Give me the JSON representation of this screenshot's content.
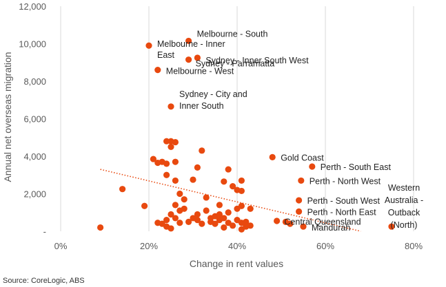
{
  "chart_data": {
    "type": "scatter",
    "xlabel": "Change in rent values",
    "ylabel": "Annual net overseas migration",
    "source": "Source: CoreLogic, ABS",
    "xlim": [
      0,
      0.8
    ],
    "ylim": [
      0,
      12000
    ],
    "x_ticks": [
      0,
      0.2,
      0.4,
      0.6,
      0.8
    ],
    "x_tick_labels": [
      "0%",
      "20%",
      "40%",
      "60%",
      "80%"
    ],
    "y_ticks": [
      0,
      2000,
      4000,
      6000,
      8000,
      10000,
      12000
    ],
    "y_tick_labels": [
      "-",
      "2,000",
      "4,000",
      "6,000",
      "8,000",
      "10,000",
      "12,000"
    ],
    "grid": "vertical",
    "colors": {
      "points": "#E8490F",
      "trendline": "#E8490F",
      "grid": "#D9D9D9"
    },
    "trendline": {
      "style": "dotted",
      "from": [
        0.09,
        3300
      ],
      "to": [
        0.68,
        0
      ]
    },
    "series": [
      {
        "points": [
          [
            0.29,
            10150
          ],
          [
            0.2,
            9900
          ],
          [
            0.31,
            9250
          ],
          [
            0.29,
            9150
          ],
          [
            0.22,
            8600
          ],
          [
            0.25,
            6650
          ],
          [
            0.48,
            3950
          ],
          [
            0.57,
            3450
          ],
          [
            0.545,
            2700
          ],
          [
            0.54,
            1650
          ],
          [
            0.54,
            1050
          ],
          [
            0.75,
            250
          ],
          [
            0.55,
            250
          ],
          [
            0.09,
            200
          ],
          [
            0.14,
            2250
          ],
          [
            0.19,
            1350
          ],
          [
            0.21,
            3850
          ],
          [
            0.22,
            3650
          ],
          [
            0.23,
            3700
          ],
          [
            0.24,
            4800
          ],
          [
            0.25,
            4800
          ],
          [
            0.26,
            4750
          ],
          [
            0.25,
            4500
          ],
          [
            0.24,
            3600
          ],
          [
            0.26,
            3700
          ],
          [
            0.32,
            4300
          ],
          [
            0.31,
            3400
          ],
          [
            0.38,
            3300
          ],
          [
            0.24,
            3000
          ],
          [
            0.26,
            2700
          ],
          [
            0.3,
            2750
          ],
          [
            0.37,
            2650
          ],
          [
            0.39,
            2400
          ],
          [
            0.4,
            2200
          ],
          [
            0.41,
            2700
          ],
          [
            0.41,
            2150
          ],
          [
            0.27,
            2000
          ],
          [
            0.28,
            1700
          ],
          [
            0.26,
            1400
          ],
          [
            0.33,
            1800
          ],
          [
            0.36,
            1400
          ],
          [
            0.4,
            1200
          ],
          [
            0.41,
            1350
          ],
          [
            0.43,
            1200
          ],
          [
            0.22,
            450
          ],
          [
            0.23,
            400
          ],
          [
            0.24,
            250
          ],
          [
            0.25,
            150
          ],
          [
            0.24,
            600
          ],
          [
            0.25,
            900
          ],
          [
            0.26,
            700
          ],
          [
            0.27,
            1100
          ],
          [
            0.27,
            450
          ],
          [
            0.28,
            1200
          ],
          [
            0.29,
            500
          ],
          [
            0.3,
            700
          ],
          [
            0.31,
            600
          ],
          [
            0.31,
            900
          ],
          [
            0.32,
            400
          ],
          [
            0.33,
            1100
          ],
          [
            0.34,
            700
          ],
          [
            0.34,
            500
          ],
          [
            0.35,
            800
          ],
          [
            0.35,
            400
          ],
          [
            0.36,
            600
          ],
          [
            0.36,
            900
          ],
          [
            0.37,
            200
          ],
          [
            0.37,
            700
          ],
          [
            0.38,
            450
          ],
          [
            0.38,
            1000
          ],
          [
            0.39,
            300
          ],
          [
            0.4,
            600
          ],
          [
            0.41,
            100
          ],
          [
            0.41,
            450
          ],
          [
            0.42,
            250
          ],
          [
            0.42,
            500
          ],
          [
            0.43,
            300
          ],
          [
            0.49,
            550
          ],
          [
            0.51,
            500
          ],
          [
            0.52,
            400
          ]
        ]
      }
    ],
    "annotations": [
      {
        "lines": [
          "Melbourne - South"
        ],
        "x": 0.29,
        "y": 10150
      },
      {
        "lines": [
          "Melbourne - Inner",
          "East"
        ],
        "x": 0.2,
        "y": 9900
      },
      {
        "lines": [
          "Sydney - Inner South West"
        ],
        "x": 0.31,
        "y": 9250
      },
      {
        "lines": [
          "Sydney - Parramatta"
        ],
        "x": 0.29,
        "y": 9150
      },
      {
        "lines": [
          "Melbourne - West"
        ],
        "x": 0.22,
        "y": 8600
      },
      {
        "lines": [
          "Sydney - City and",
          "Inner South"
        ],
        "x": 0.25,
        "y": 6650
      },
      {
        "lines": [
          "Gold Coast"
        ],
        "x": 0.48,
        "y": 3950
      },
      {
        "lines": [
          "Perth - South East"
        ],
        "x": 0.57,
        "y": 3450
      },
      {
        "lines": [
          "Perth - North West"
        ],
        "x": 0.545,
        "y": 2700
      },
      {
        "lines": [
          "Perth - South West"
        ],
        "x": 0.54,
        "y": 1650
      },
      {
        "lines": [
          "Perth - North East"
        ],
        "x": 0.54,
        "y": 1050
      },
      {
        "lines": [
          "Central Queensland"
        ],
        "x": 0.51,
        "y": 500
      },
      {
        "lines": [
          "Mandurah"
        ],
        "x": 0.55,
        "y": 250
      },
      {
        "lines": [
          "Western",
          "Australia -",
          "Outback",
          "(North)"
        ],
        "x": 0.75,
        "y": 250
      }
    ]
  }
}
